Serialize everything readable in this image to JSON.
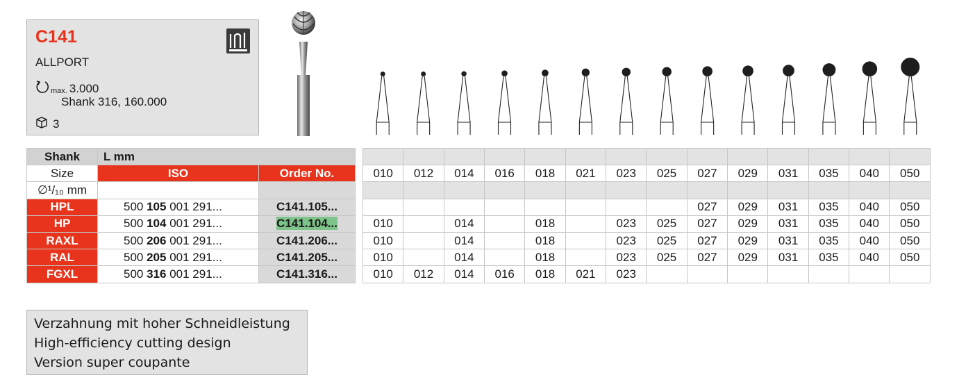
{
  "product": {
    "code": "C141",
    "name": "ALLPORT",
    "speed_prefix": "max.",
    "speed_value": "3.000",
    "speed_shank": "Shank 316, 160.000",
    "pack_qty": "3"
  },
  "icons": {
    "rotation": "rotation-arrow-icon",
    "package": "package-box-icon",
    "logo": "tungsten-carbide-logo-icon"
  },
  "colors": {
    "accent": "#e8341c",
    "highlight": "#7ec48a",
    "panel": "#e3e3e3"
  },
  "table": {
    "shank_label": "Shank",
    "lmm_label": "L mm",
    "size_label": "Size",
    "dia_label": "∅¹/₁₀ mm",
    "iso_label": "ISO",
    "order_label": "Order No.",
    "sizes": [
      "010",
      "012",
      "014",
      "016",
      "018",
      "021",
      "023",
      "025",
      "027",
      "029",
      "031",
      "035",
      "040",
      "050"
    ],
    "rows": [
      {
        "shank": "HPL",
        "iso_pre": "500 ",
        "iso_bold": "105",
        "iso_post": " 001 291...",
        "order": "C141.105...",
        "highlight": false,
        "avail": [
          "",
          "",
          "",
          "",
          "",
          "",
          "",
          "",
          "027",
          "029",
          "031",
          "035",
          "040",
          "050"
        ]
      },
      {
        "shank": "HP",
        "iso_pre": "500 ",
        "iso_bold": "104",
        "iso_post": " 001 291...",
        "order": "C141.104...",
        "highlight": true,
        "avail": [
          "010",
          "",
          "014",
          "",
          "018",
          "",
          "023",
          "025",
          "027",
          "029",
          "031",
          "035",
          "040",
          "050"
        ]
      },
      {
        "shank": "RAXL",
        "iso_pre": "500 ",
        "iso_bold": "206",
        "iso_post": " 001 291...",
        "order": "C141.206...",
        "highlight": false,
        "avail": [
          "010",
          "",
          "014",
          "",
          "018",
          "",
          "023",
          "025",
          "027",
          "029",
          "031",
          "035",
          "040",
          "050"
        ]
      },
      {
        "shank": "RAL",
        "iso_pre": "500 ",
        "iso_bold": "205",
        "iso_post": " 001 291...",
        "order": "C141.205...",
        "highlight": false,
        "avail": [
          "010",
          "",
          "014",
          "",
          "018",
          "",
          "023",
          "025",
          "027",
          "029",
          "031",
          "035",
          "040",
          "050"
        ]
      },
      {
        "shank": "FGXL",
        "iso_pre": "500 ",
        "iso_bold": "316",
        "iso_post": " 001 291...",
        "order": "C141.316...",
        "highlight": false,
        "avail": [
          "010",
          "012",
          "014",
          "016",
          "018",
          "021",
          "023",
          "",
          "",
          "",
          "",
          "",
          "",
          ""
        ]
      }
    ]
  },
  "description": {
    "de": "Verzahnung mit hoher Schneidleistung",
    "en": "High-efficiency cutting design",
    "fr": "Version super coupante"
  }
}
